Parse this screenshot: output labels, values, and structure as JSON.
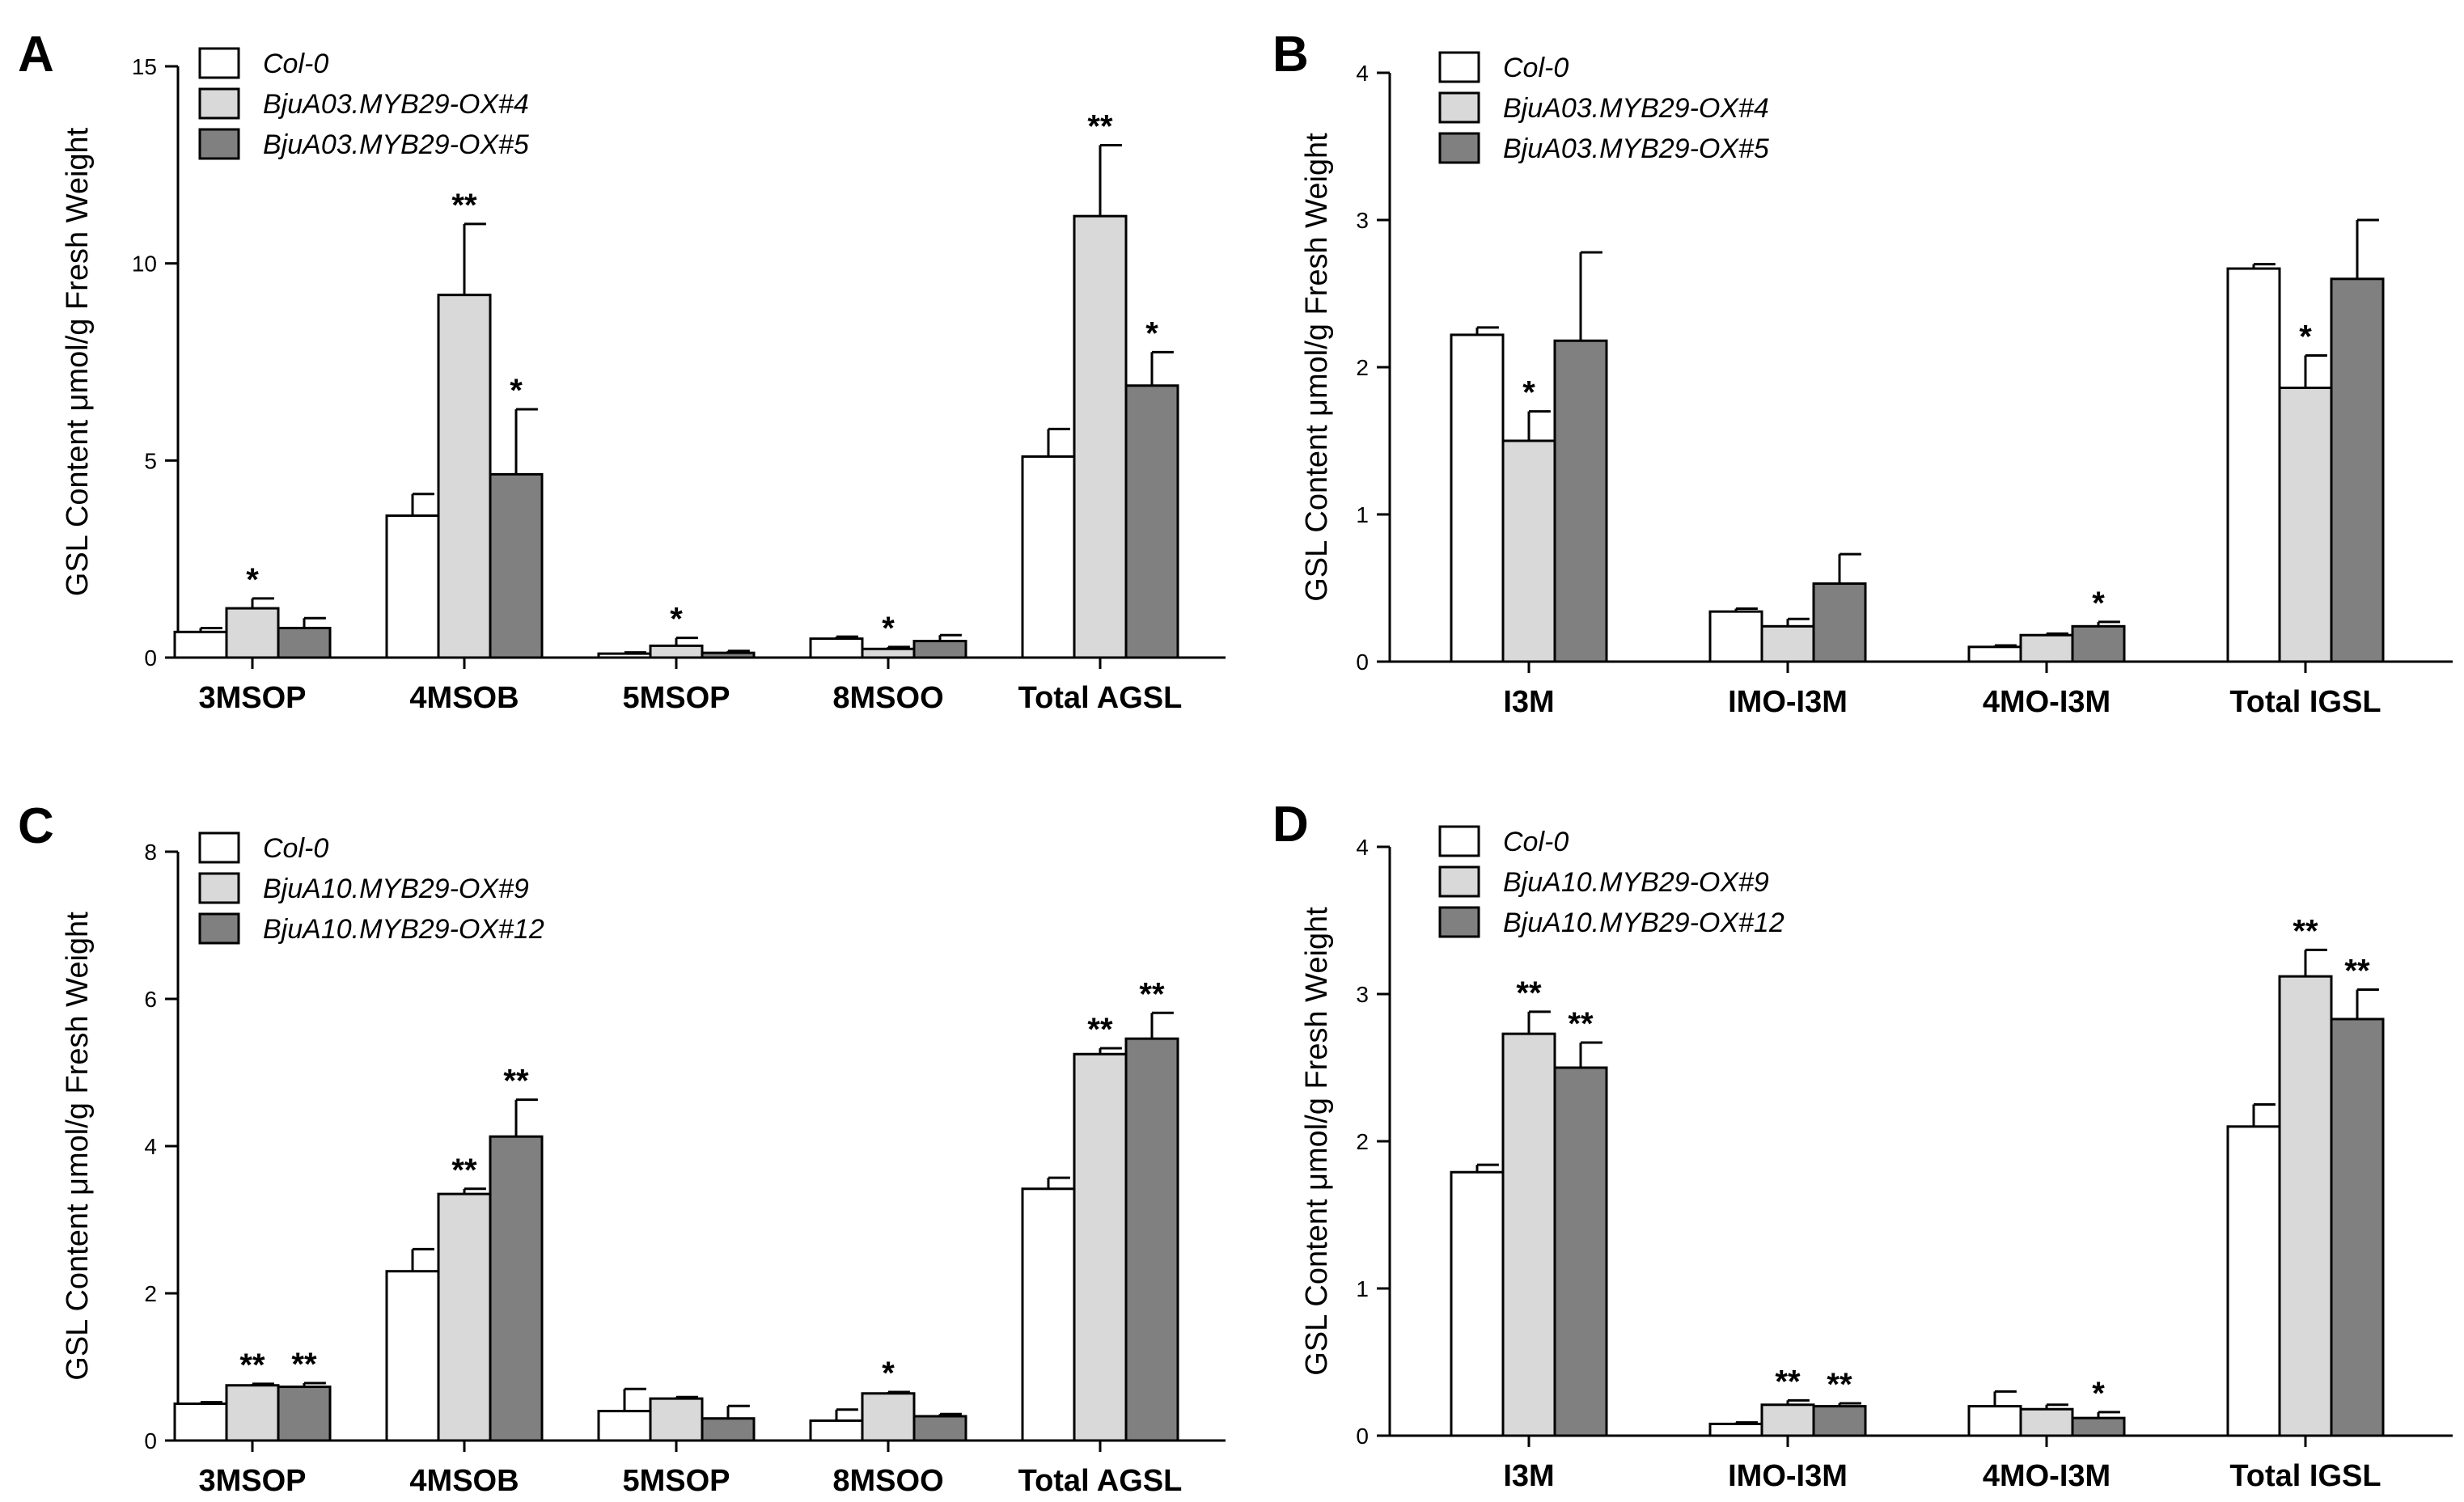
{
  "chart_data": [
    {
      "type": "bar",
      "panel": "A",
      "ylabel": "GSL Content μmol/g Fresh Weight",
      "ylim": [
        0,
        15
      ],
      "yticks": [
        0,
        5,
        10,
        15
      ],
      "categories": [
        "3MSOP",
        "4MSOB",
        "5MSOP",
        "8MSOO",
        "Total AGSL"
      ],
      "series": [
        {
          "name": "Col-0",
          "color": "#ffffff",
          "values": [
            0.65,
            3.6,
            0.1,
            0.48,
            5.1
          ],
          "errors": [
            0.1,
            0.55,
            0.03,
            0.05,
            0.7
          ],
          "significance": [
            "",
            "",
            "",
            "",
            ""
          ]
        },
        {
          "name": "BjuA03.MYB29-OX#4",
          "color": "#d9d9d9",
          "values": [
            1.25,
            9.2,
            0.3,
            0.22,
            11.2
          ],
          "errors": [
            0.25,
            1.8,
            0.2,
            0.05,
            1.8
          ],
          "significance": [
            "*",
            "**",
            "*",
            "*",
            "**"
          ]
        },
        {
          "name": "BjuA03.MYB29-OX#5",
          "color": "#808080",
          "values": [
            0.75,
            4.65,
            0.12,
            0.42,
            6.9
          ],
          "errors": [
            0.25,
            1.65,
            0.05,
            0.15,
            0.85
          ],
          "significance": [
            "",
            "*",
            "",
            "",
            "*"
          ]
        }
      ]
    },
    {
      "type": "bar",
      "panel": "B",
      "ylabel": "GSL Content μmol/g Fresh Weight",
      "ylim": [
        0,
        4
      ],
      "yticks": [
        0,
        1,
        2,
        3,
        4
      ],
      "categories": [
        "I3M",
        "IMO-I3M",
        "4MO-I3M",
        "Total IGSL"
      ],
      "series": [
        {
          "name": "Col-0",
          "color": "#ffffff",
          "values": [
            2.22,
            0.34,
            0.1,
            2.67
          ],
          "errors": [
            0.05,
            0.02,
            0.01,
            0.03
          ],
          "significance": [
            "",
            "",
            "",
            ""
          ]
        },
        {
          "name": "BjuA03.MYB29-OX#4",
          "color": "#d9d9d9",
          "values": [
            1.5,
            0.24,
            0.18,
            1.86
          ],
          "errors": [
            0.2,
            0.05,
            0.01,
            0.22
          ],
          "significance": [
            "*",
            "",
            "",
            "*"
          ]
        },
        {
          "name": "BjuA03.MYB29-OX#5",
          "color": "#808080",
          "values": [
            2.18,
            0.53,
            0.24,
            2.6
          ],
          "errors": [
            0.6,
            0.2,
            0.03,
            0.4
          ],
          "significance": [
            "",
            "",
            "*",
            ""
          ]
        }
      ]
    },
    {
      "type": "bar",
      "panel": "C",
      "ylabel": "GSL Content μmol/g Fresh Weight",
      "ylim": [
        0,
        8
      ],
      "yticks": [
        0,
        2,
        4,
        6,
        8
      ],
      "categories": [
        "3MSOP",
        "4MSOB",
        "5MSOP",
        "8MSOO",
        "Total AGSL"
      ],
      "series": [
        {
          "name": "Col-0",
          "color": "#ffffff",
          "values": [
            0.5,
            2.3,
            0.4,
            0.27,
            3.42
          ],
          "errors": [
            0.02,
            0.3,
            0.3,
            0.15,
            0.15
          ],
          "significance": [
            "",
            "",
            "",
            "",
            ""
          ]
        },
        {
          "name": "BjuA10.MYB29-OX#9",
          "color": "#d9d9d9",
          "values": [
            0.75,
            3.35,
            0.57,
            0.64,
            5.25
          ],
          "errors": [
            0.02,
            0.07,
            0.02,
            0.02,
            0.08
          ],
          "significance": [
            "**",
            "**",
            "",
            "*",
            "**"
          ]
        },
        {
          "name": "BjuA10.MYB29-OX#12",
          "color": "#808080",
          "values": [
            0.73,
            4.13,
            0.3,
            0.33,
            5.46
          ],
          "errors": [
            0.05,
            0.5,
            0.17,
            0.03,
            0.35
          ],
          "significance": [
            "**",
            "**",
            "",
            "",
            "**"
          ]
        }
      ]
    },
    {
      "type": "bar",
      "panel": "D",
      "ylabel": "GSL Content μmol/g Fresh Weight",
      "ylim": [
        0,
        4
      ],
      "yticks": [
        0,
        1,
        2,
        3,
        4
      ],
      "categories": [
        "I3M",
        "IMO-I3M",
        "4MO-I3M",
        "Total IGSL"
      ],
      "series": [
        {
          "name": "Col-0",
          "color": "#ffffff",
          "values": [
            1.79,
            0.08,
            0.2,
            2.1
          ],
          "errors": [
            0.05,
            0.01,
            0.1,
            0.15
          ],
          "significance": [
            "",
            "",
            "",
            ""
          ]
        },
        {
          "name": "BjuA10.MYB29-OX#9",
          "color": "#d9d9d9",
          "values": [
            2.73,
            0.21,
            0.18,
            3.12
          ],
          "errors": [
            0.15,
            0.03,
            0.03,
            0.18
          ],
          "significance": [
            "**",
            "**",
            "",
            "**"
          ]
        },
        {
          "name": "BjuA10.MYB29-OX#12",
          "color": "#808080",
          "values": [
            2.5,
            0.2,
            0.12,
            2.83
          ],
          "errors": [
            0.17,
            0.02,
            0.04,
            0.2
          ],
          "significance": [
            "**",
            "**",
            "*",
            "**"
          ]
        }
      ]
    }
  ]
}
